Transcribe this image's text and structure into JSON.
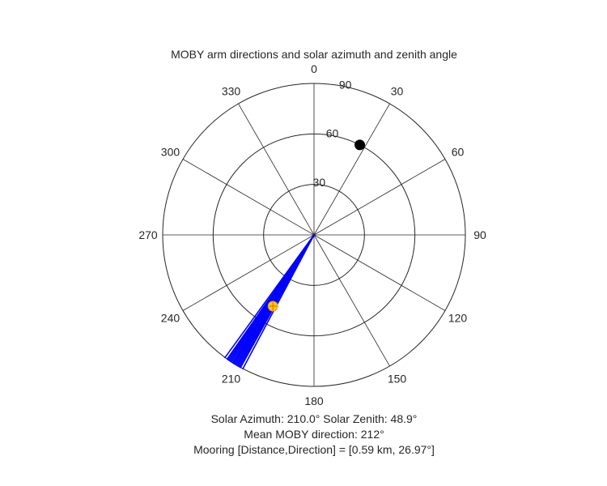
{
  "chart_data": {
    "type": "polar",
    "title": "MOBY arm directions and solar azimuth and zenith angle",
    "angle_ticks": [
      "0",
      "30",
      "60",
      "90",
      "120",
      "150",
      "180",
      "210",
      "240",
      "270",
      "300",
      "330"
    ],
    "radial_ticks": [
      "30",
      "60",
      "90"
    ],
    "radial_max": 90,
    "grid": true,
    "orientation": "clockwise, 0 at top",
    "moby_arm_directions_deg": [
      208,
      209,
      209.5,
      210,
      210.5,
      211,
      211.5,
      212,
      212,
      212.5,
      213,
      213.5,
      214,
      214.5,
      215,
      216
    ],
    "moby_arm_color": "#0000ff",
    "solar_point": {
      "azimuth": 210.0,
      "zenith": 48.9,
      "color": "#ffcc00"
    },
    "mooring_point": {
      "direction": 26.97,
      "value": 60,
      "color": "#000000"
    }
  },
  "annotations": {
    "solar_line": "Solar Azimuth: 210.0°    Solar Zenith: 48.9°",
    "mean_line": "Mean MOBY direction: 212°",
    "mooring_line": "Mooring [Distance,Direction] = [0.59 km, 26.97°]"
  }
}
